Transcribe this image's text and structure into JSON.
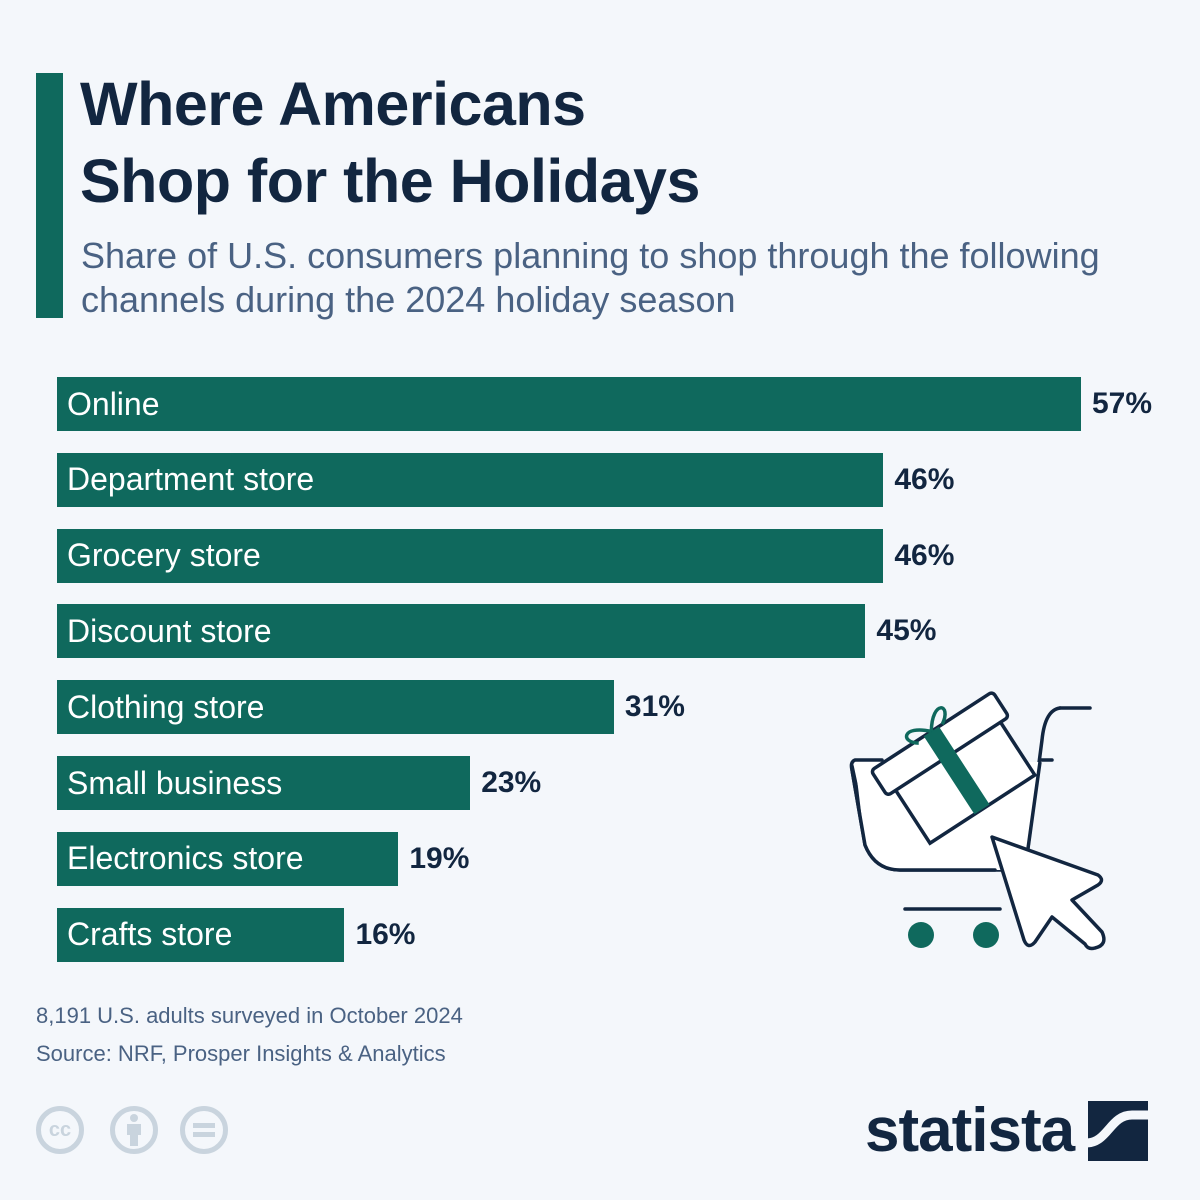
{
  "header": {
    "title_line1": "Where Americans",
    "title_line2": "Shop for the Holidays",
    "subtitle": "Share of U.S. consumers planning to shop through the following channels during the 2024 holiday season"
  },
  "colors": {
    "bar": "#0f695d",
    "title": "#122640",
    "subtitle": "#4a6283",
    "background": "#f4f7fb",
    "icon_gray": "#c9d4de"
  },
  "chart_data": {
    "type": "bar",
    "orientation": "horizontal",
    "title": "Where Americans Shop for the Holidays",
    "subtitle": "Share of U.S. consumers planning to shop through the following channels during the 2024 holiday season",
    "categories": [
      "Online",
      "Department store",
      "Grocery store",
      "Discount store",
      "Clothing store",
      "Small business",
      "Electronics store",
      "Crafts store"
    ],
    "values": [
      57,
      46,
      46,
      45,
      31,
      23,
      19,
      16
    ],
    "value_labels": [
      "57%",
      "46%",
      "46%",
      "45%",
      "31%",
      "23%",
      "19%",
      "16%"
    ],
    "unit": "%",
    "xlabel": "",
    "ylabel": "",
    "grid": false,
    "legend": "none"
  },
  "footer": {
    "note": "8,191 U.S. adults surveyed in October 2024",
    "source": "Source: NRF, Prosper Insights & Analytics",
    "license_icons": [
      "cc-icon",
      "attribution-icon",
      "no-derivatives-icon"
    ],
    "cc_text": "cc",
    "brand": "statista"
  }
}
